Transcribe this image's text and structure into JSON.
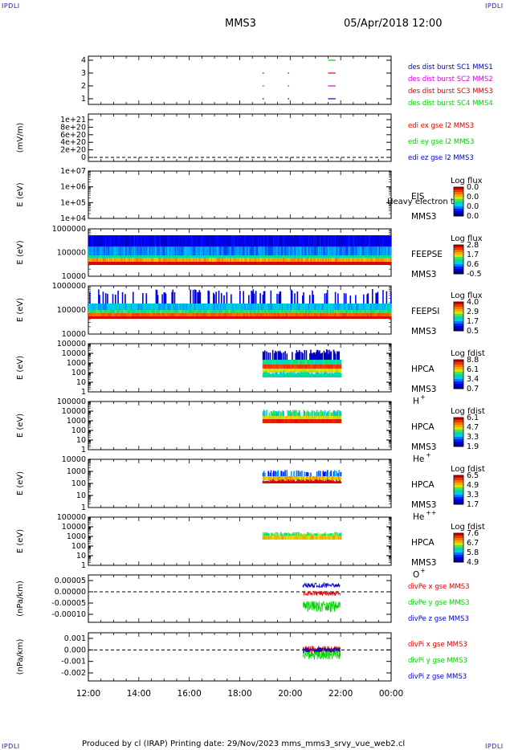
{
  "corners": {
    "tl": "IPDLI",
    "tr": "IPDLI",
    "bl": "IPDLI",
    "br": "IPDLI"
  },
  "header": {
    "spacecraft": "MMS3",
    "datetime": "05/Apr/2018 12:00"
  },
  "footer": {
    "text": "Produced by cl (IRAP)   Printing date: 29/Nov/2023   mms_mms3_srvy_vue_web2.cl"
  },
  "time_axis": {
    "ticks": [
      "12:00",
      "14:00",
      "16:00",
      "18:00",
      "20:00",
      "22:00",
      "00:00"
    ],
    "range_hours": [
      12,
      24
    ]
  },
  "colors": {
    "red": "#e00000",
    "magenta": "#e000e0",
    "green": "#00d000",
    "blue": "#0000c8",
    "axis": "#000000"
  },
  "chart_data": [
    {
      "id": "des-burst",
      "type": "scatter",
      "ylabel": "",
      "yticks": [
        "1",
        "2",
        "3",
        "4"
      ],
      "series": [
        {
          "name": "des dist burst SC1 MMS1",
          "color": "#0000c8",
          "level": 1
        },
        {
          "name": "des dist burst SC2 MMS2",
          "color": "#e000e0",
          "level": 2
        },
        {
          "name": "des dist burst SC3 MMS3",
          "color": "#e00000",
          "level": 3
        },
        {
          "name": "des dist burst SC4 MMS4",
          "color": "#00d000",
          "level": 4
        }
      ],
      "segments_hours": [
        [
          18.9,
          19.0
        ],
        [
          19.9,
          20.0
        ],
        [
          21.5,
          21.8
        ]
      ]
    },
    {
      "id": "edi",
      "type": "line",
      "ylabel": "(mV/m)",
      "yticks": [
        "0",
        "2e+20",
        "4e+20",
        "6e+20",
        "8e+20",
        "1e+21"
      ],
      "series": [
        {
          "name": "edi ex gse l2 MMS3",
          "color": "#e00000"
        },
        {
          "name": "edi ey gse l2 MMS3",
          "color": "#00d000"
        },
        {
          "name": "edi ez gse l2 MMS3",
          "color": "#0000c8"
        }
      ]
    },
    {
      "id": "eis",
      "type": "heatmap",
      "ylabel": "E (eV)",
      "yticks": [
        "1e+04",
        "1e+05",
        "1e+06",
        "1e+07"
      ],
      "labels": [
        "EIS",
        "MMS3"
      ],
      "overlay": "Heavy electron to",
      "colorbar": {
        "title": "Log flux",
        "ticks": [
          "0.0",
          "0.0",
          "0.0",
          "0.0"
        ]
      }
    },
    {
      "id": "feepse",
      "type": "heatmap",
      "ylabel": "E (eV)",
      "yticks": [
        "10000",
        "100000",
        "1000000"
      ],
      "labels": [
        "FEEPSE",
        "MMS3"
      ],
      "coverage_hours": [
        12,
        24
      ],
      "colorbar": {
        "title": "Log flux",
        "ticks": [
          "2.8",
          "1.7",
          "0.6",
          "-0.5"
        ]
      }
    },
    {
      "id": "feepsi",
      "type": "heatmap",
      "ylabel": "E (eV)",
      "yticks": [
        "10000",
        "100000",
        "1000000"
      ],
      "labels": [
        "FEEPSI",
        "MMS3"
      ],
      "coverage_hours": [
        12,
        24
      ],
      "colorbar": {
        "title": "Log flux",
        "ticks": [
          "4.0",
          "2.9",
          "1.7",
          "0.5"
        ]
      }
    },
    {
      "id": "hpca-h",
      "type": "heatmap",
      "ylabel": "E (eV)",
      "yticks": [
        "1",
        "10",
        "100",
        "1000",
        "10000",
        "100000"
      ],
      "labels": [
        "HPCA",
        "MMS3"
      ],
      "species": "H",
      "charge": "+",
      "coverage_hours": [
        18.9,
        22.0
      ],
      "colorbar": {
        "title": "Log fdist",
        "ticks": [
          "8.8",
          "6.1",
          "3.4",
          "0.7"
        ]
      }
    },
    {
      "id": "hpca-he",
      "type": "heatmap",
      "ylabel": "E (eV)",
      "yticks": [
        "1",
        "10",
        "100",
        "1000",
        "10000",
        "100000"
      ],
      "labels": [
        "HPCA",
        "MMS3"
      ],
      "species": "He",
      "charge": "+",
      "coverage_hours": [
        18.9,
        22.0
      ],
      "colorbar": {
        "title": "Log fdist",
        "ticks": [
          "6.1",
          "4.7",
          "3.3",
          "1.9"
        ]
      }
    },
    {
      "id": "hpca-he2",
      "type": "heatmap",
      "ylabel": "E (eV)",
      "yticks": [
        "1",
        "10",
        "100",
        "1000",
        "10000"
      ],
      "labels": [
        "HPCA",
        "MMS3"
      ],
      "species": "He",
      "charge": "++",
      "coverage_hours": [
        18.9,
        22.0
      ],
      "colorbar": {
        "title": "Log fdist",
        "ticks": [
          "6.5",
          "4.9",
          "3.3",
          "1.7"
        ]
      }
    },
    {
      "id": "hpca-o",
      "type": "heatmap",
      "ylabel": "E (eV)",
      "yticks": [
        "1",
        "10",
        "100",
        "1000",
        "10000",
        "100000"
      ],
      "labels": [
        "HPCA",
        "MMS3"
      ],
      "species": "O",
      "charge": "+",
      "coverage_hours": [
        18.9,
        22.0
      ],
      "colorbar": {
        "title": "Log fdist",
        "ticks": [
          "7.6",
          "6.7",
          "5.8",
          "4.9"
        ]
      }
    },
    {
      "id": "divpe",
      "type": "line",
      "ylabel": "(nPa/km)",
      "yticks": [
        "-0.00010",
        "-0.00005",
        "0.00000",
        "0.00005"
      ],
      "series": [
        {
          "name": "divPe x gse MMS3",
          "color": "#e00000"
        },
        {
          "name": "divPe y gse MMS3",
          "color": "#00d000"
        },
        {
          "name": "divPe z gse MMS3",
          "color": "#0000c8"
        }
      ],
      "coverage_hours": [
        20.5,
        22.0
      ]
    },
    {
      "id": "divpi",
      "type": "line",
      "ylabel": "(nPa/km)",
      "yticks": [
        "-0.002",
        "-0.001",
        "0.000",
        "0.001"
      ],
      "series": [
        {
          "name": "divPi x gse MMS3",
          "color": "#e00000"
        },
        {
          "name": "divPi y gse MMS3",
          "color": "#00d000"
        },
        {
          "name": "divPi z gse MMS3",
          "color": "#0000c8"
        }
      ],
      "coverage_hours": [
        20.5,
        22.0
      ]
    }
  ]
}
